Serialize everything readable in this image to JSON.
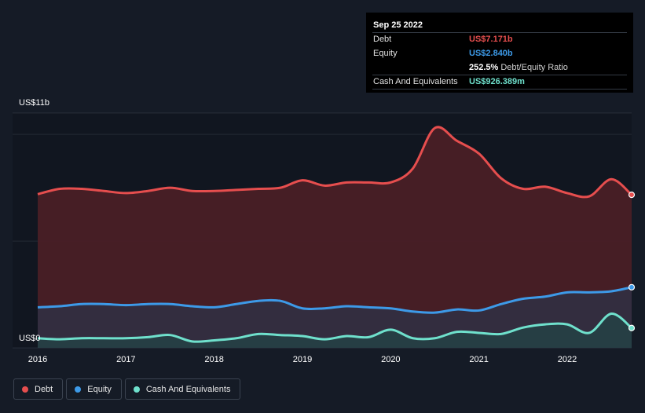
{
  "tooltip": {
    "date": "Sep 25 2022",
    "rows": [
      {
        "label": "Debt",
        "value": "US$7.171b",
        "color": "#e64e4e"
      },
      {
        "label": "Equity",
        "value": "US$2.840b",
        "color": "#3d9ae8"
      },
      {
        "label": "",
        "value": "252.5%",
        "suffix": "Debt/Equity Ratio",
        "color": "#ffffff"
      },
      {
        "label": "Cash And Equivalents",
        "value": "US$926.389m",
        "color": "#6fe0cc"
      }
    ]
  },
  "legend": [
    {
      "label": "Debt",
      "color": "#e64e4e"
    },
    {
      "label": "Equity",
      "color": "#3d9ae8"
    },
    {
      "label": "Cash And Equivalents",
      "color": "#6fe0cc"
    }
  ],
  "chart_data": {
    "type": "area",
    "y_tick_labels": {
      "top": "US$11b",
      "bottom": "US$0"
    },
    "ylim": [
      0,
      11
    ],
    "xlim": [
      2016,
      2022.73
    ],
    "x_ticks": [
      2016,
      2017,
      2018,
      2019,
      2020,
      2021,
      2022
    ],
    "x_tick_labels": [
      "2016",
      "2017",
      "2018",
      "2019",
      "2020",
      "2021",
      "2022"
    ],
    "grid": true,
    "legend_position": "bottom-left",
    "series": [
      {
        "name": "Debt",
        "color": "#e64e4e",
        "x": [
          2016,
          2016.25,
          2016.5,
          2016.75,
          2017,
          2017.25,
          2017.5,
          2017.75,
          2018,
          2018.25,
          2018.5,
          2018.75,
          2019,
          2019.25,
          2019.5,
          2019.75,
          2020,
          2020.25,
          2020.5,
          2020.75,
          2021,
          2021.25,
          2021.5,
          2021.75,
          2022,
          2022.25,
          2022.5,
          2022.73
        ],
        "values": [
          7.2,
          7.45,
          7.45,
          7.35,
          7.25,
          7.35,
          7.5,
          7.35,
          7.35,
          7.4,
          7.45,
          7.5,
          7.85,
          7.6,
          7.75,
          7.75,
          7.75,
          8.4,
          10.3,
          9.7,
          9.1,
          7.95,
          7.45,
          7.55,
          7.25,
          7.1,
          7.9,
          7.17
        ]
      },
      {
        "name": "Equity",
        "color": "#3d9ae8",
        "x": [
          2016,
          2016.25,
          2016.5,
          2016.75,
          2017,
          2017.25,
          2017.5,
          2017.75,
          2018,
          2018.25,
          2018.5,
          2018.75,
          2019,
          2019.25,
          2019.5,
          2019.75,
          2020,
          2020.25,
          2020.5,
          2020.75,
          2021,
          2021.25,
          2021.5,
          2021.75,
          2022,
          2022.25,
          2022.5,
          2022.73
        ],
        "values": [
          1.9,
          1.95,
          2.05,
          2.05,
          2.0,
          2.05,
          2.05,
          1.95,
          1.9,
          2.05,
          2.2,
          2.2,
          1.85,
          1.85,
          1.95,
          1.9,
          1.85,
          1.7,
          1.65,
          1.8,
          1.75,
          2.05,
          2.3,
          2.4,
          2.6,
          2.6,
          2.65,
          2.84
        ]
      },
      {
        "name": "Cash And Equivalents",
        "color": "#6fe0cc",
        "x": [
          2016,
          2016.25,
          2016.5,
          2016.75,
          2017,
          2017.25,
          2017.5,
          2017.75,
          2018,
          2018.25,
          2018.5,
          2018.75,
          2019,
          2019.25,
          2019.5,
          2019.75,
          2020,
          2020.25,
          2020.5,
          2020.75,
          2021,
          2021.25,
          2021.5,
          2021.75,
          2022,
          2022.25,
          2022.5,
          2022.73
        ],
        "values": [
          0.45,
          0.4,
          0.45,
          0.45,
          0.45,
          0.5,
          0.6,
          0.3,
          0.35,
          0.45,
          0.65,
          0.6,
          0.55,
          0.4,
          0.55,
          0.5,
          0.85,
          0.45,
          0.45,
          0.75,
          0.7,
          0.65,
          0.95,
          1.1,
          1.1,
          0.7,
          1.6,
          0.93
        ]
      }
    ]
  }
}
